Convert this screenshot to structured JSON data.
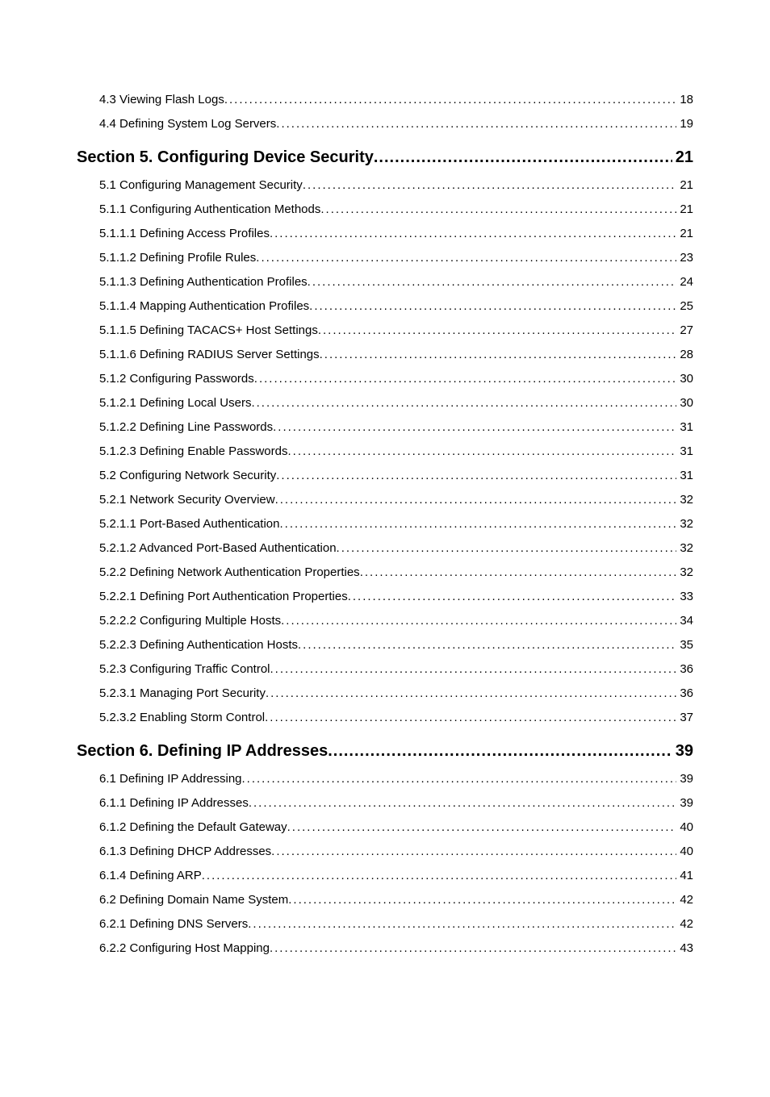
{
  "entries": [
    {
      "type": "entry",
      "num": "4.3",
      "title": "Viewing Flash Logs",
      "page": "18"
    },
    {
      "type": "entry",
      "num": "4.4",
      "title": "Defining System Log Servers",
      "page": "19"
    },
    {
      "type": "section",
      "num": "Section 5.",
      "title": "Configuring Device Security",
      "page": "21"
    },
    {
      "type": "entry",
      "num": "5.1",
      "title": "Configuring Management Security",
      "page": "21"
    },
    {
      "type": "entry",
      "num": "5.1.1",
      "title": "Configuring Authentication Methods",
      "page": "21"
    },
    {
      "type": "entry",
      "num": "5.1.1.1",
      "title": "Defining Access Profiles",
      "page": "21"
    },
    {
      "type": "entry",
      "num": "5.1.1.2",
      "title": "Defining Profile Rules",
      "page": "23"
    },
    {
      "type": "entry",
      "num": "5.1.1.3",
      "title": "Defining Authentication Profiles",
      "page": "24"
    },
    {
      "type": "entry",
      "num": "5.1.1.4",
      "title": "Mapping Authentication Profiles",
      "page": "25"
    },
    {
      "type": "entry",
      "num": "5.1.1.5",
      "title": "Defining TACACS+ Host Settings",
      "page": "27"
    },
    {
      "type": "entry",
      "num": "5.1.1.6",
      "title": "Defining RADIUS Server Settings",
      "page": "28"
    },
    {
      "type": "entry",
      "num": "5.1.2",
      "title": "Configuring Passwords",
      "page": "30"
    },
    {
      "type": "entry",
      "num": "5.1.2.1",
      "title": "Defining Local Users",
      "page": "30"
    },
    {
      "type": "entry",
      "num": "5.1.2.2",
      "title": "Defining Line Passwords",
      "page": "31"
    },
    {
      "type": "entry",
      "num": "5.1.2.3",
      "title": "Defining Enable Passwords",
      "page": "31"
    },
    {
      "type": "entry",
      "num": "5.2",
      "title": "Configuring Network Security",
      "page": "31"
    },
    {
      "type": "entry",
      "num": "5.2.1",
      "title": "Network Security Overview",
      "page": "32"
    },
    {
      "type": "entry",
      "num": "5.2.1.1",
      "title": "Port-Based Authentication ",
      "page": "32"
    },
    {
      "type": "entry",
      "num": "5.2.1.2",
      "title": "Advanced Port-Based Authentication",
      "page": "32"
    },
    {
      "type": "entry",
      "num": "5.2.2",
      "title": "Defining Network Authentication Properties",
      "page": "32"
    },
    {
      "type": "entry",
      "num": "5.2.2.1",
      "title": "Defining Port Authentication Properties",
      "page": "33"
    },
    {
      "type": "entry",
      "num": "5.2.2.2",
      "title": "Configuring Multiple Hosts",
      "page": "34"
    },
    {
      "type": "entry",
      "num": "5.2.2.3",
      "title": "Defining Authentication Hosts",
      "page": "35"
    },
    {
      "type": "entry",
      "num": "5.2.3",
      "title": "Configuring Traffic Control",
      "page": "36"
    },
    {
      "type": "entry",
      "num": "5.2.3.1",
      "title": "Managing Port Security",
      "page": "36"
    },
    {
      "type": "entry",
      "num": "5.2.3.2",
      "title": "Enabling Storm Control",
      "page": "37"
    },
    {
      "type": "section",
      "num": "Section 6.",
      "title": "Defining IP Addresses",
      "page": "39"
    },
    {
      "type": "entry",
      "num": "6.1",
      "title": "Defining IP Addressing",
      "page": "39"
    },
    {
      "type": "entry",
      "num": "6.1.1",
      "title": "Defining IP Addresses",
      "page": "39"
    },
    {
      "type": "entry",
      "num": "6.1.2",
      "title": "Defining the Default Gateway",
      "page": "40"
    },
    {
      "type": "entry",
      "num": "6.1.3",
      "title": "Defining DHCP Addresses",
      "page": "40"
    },
    {
      "type": "entry",
      "num": "6.1.4",
      "title": "Defining ARP",
      "page": "41"
    },
    {
      "type": "entry",
      "num": "6.2",
      "title": "Defining Domain Name System",
      "page": "42"
    },
    {
      "type": "entry",
      "num": "6.2.1",
      "title": "Defining DNS Servers",
      "page": "42"
    },
    {
      "type": "entry",
      "num": "6.2.2",
      "title": "Configuring Host Mapping",
      "page": "43"
    }
  ]
}
